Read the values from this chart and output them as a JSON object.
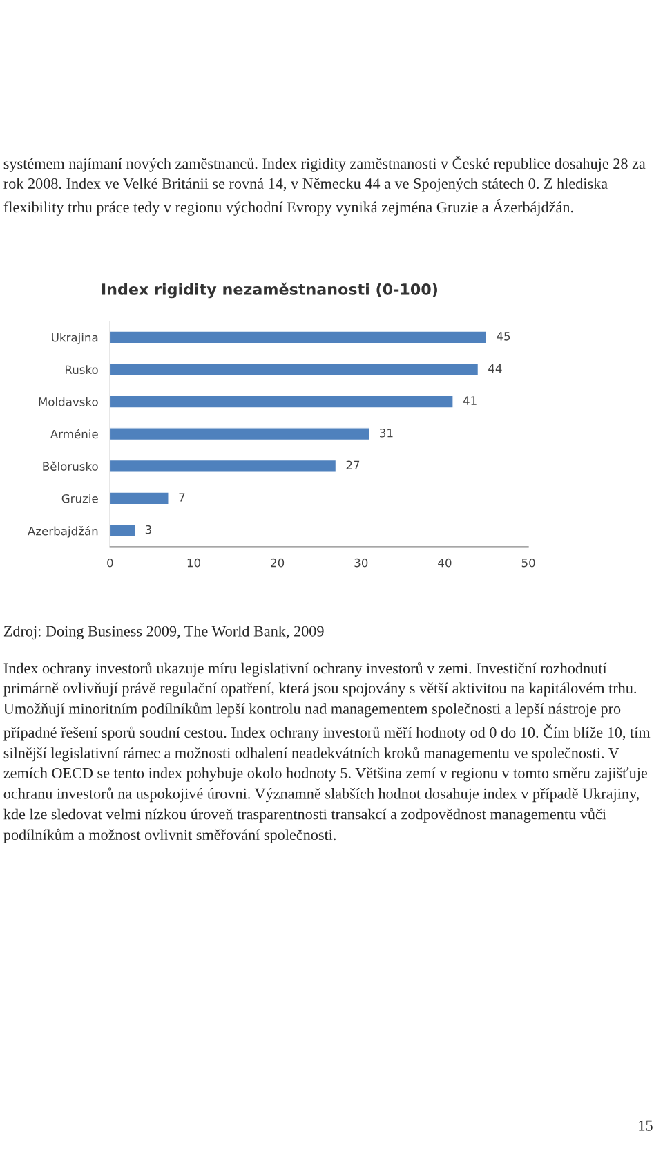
{
  "chart_data": {
    "type": "bar",
    "orientation": "horizontal",
    "title": "Index rigidity nezaměstnanosti (0-100)",
    "categories": [
      "Ukrajina",
      "Rusko",
      "Moldavsko",
      "Arménie",
      "Bělorusko",
      "Gruzie",
      "Azerbajdžán"
    ],
    "values": [
      45,
      44,
      41,
      31,
      27,
      7,
      3
    ],
    "color": "#4f81bd",
    "data_labels": true,
    "xlim": [
      0,
      50
    ],
    "xticks": [
      0,
      10,
      20,
      30,
      40,
      50
    ],
    "grid": false,
    "legend": false,
    "annotations": [
      "systémem najímaní nových zaměstnanců. Index rigidity zaměstnanosti v České republice dosahuje 28 za rok 2008. Index ve Velké Británii se rovná 14, v Německu 44 a ve Spojených státech 0. Z hlediska flexibility trhu práce tedy v regionu východní Evropy vyniká zejména Gruzie a Ázerbájdžán.",
      "Zdroj: Doing Business 2009, The World Bank, 2009",
      "Index ochrany investorů ukazuje míru legislativní ochrany investorů v zemi. Investiční rozhodnutí primárně ovlivňují právě regulační opatření, která jsou spojovány s větší aktivitou na kapitálovém trhu. Umožňují minoritním podílníkům lepší kontrolu nad managementem společnosti a lepší nástroje pro případné řešení sporů soudní cestou. Index ochrany investorů měří hodnoty od 0 do 10. Čím blíže 10, tím silnější legislativní rámec a možnosti odhalení neadekvátních kroků managementu ve společnosti. V zemích OECD se tento index pohybuje okolo hodnoty 5. Většina zemí v regionu v tomto směru zajišťuje ochranu investorů na uspokojivé úrovni. Významně slabších hodnot dosahuje index v případě Ukrajiny, kde lze sledovat velmi nízkou úroveň trasparentnosti transakcí a zodpovědnost managementu vůči podílníkům a možnost ovlivnit směřování společnosti.",
      "15"
    ]
  }
}
